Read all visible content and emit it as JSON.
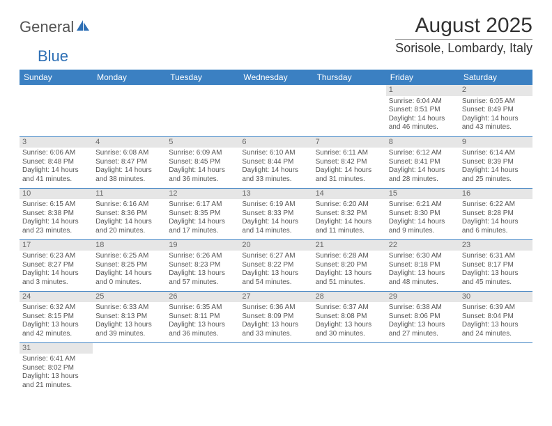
{
  "logo": {
    "text1": "General",
    "text2": "Blue"
  },
  "title": "August 2025",
  "location": "Sorisole, Lombardy, Italy",
  "weekdays": [
    "Sunday",
    "Monday",
    "Tuesday",
    "Wednesday",
    "Thursday",
    "Friday",
    "Saturday"
  ],
  "header_bg": "#3b80c2",
  "daynum_bg": "#e6e6e6",
  "weeks": [
    [
      null,
      null,
      null,
      null,
      null,
      {
        "n": "1",
        "sr": "Sunrise: 6:04 AM",
        "ss": "Sunset: 8:51 PM",
        "dl": "Daylight: 14 hours and 46 minutes."
      },
      {
        "n": "2",
        "sr": "Sunrise: 6:05 AM",
        "ss": "Sunset: 8:49 PM",
        "dl": "Daylight: 14 hours and 43 minutes."
      }
    ],
    [
      {
        "n": "3",
        "sr": "Sunrise: 6:06 AM",
        "ss": "Sunset: 8:48 PM",
        "dl": "Daylight: 14 hours and 41 minutes."
      },
      {
        "n": "4",
        "sr": "Sunrise: 6:08 AM",
        "ss": "Sunset: 8:47 PM",
        "dl": "Daylight: 14 hours and 38 minutes."
      },
      {
        "n": "5",
        "sr": "Sunrise: 6:09 AM",
        "ss": "Sunset: 8:45 PM",
        "dl": "Daylight: 14 hours and 36 minutes."
      },
      {
        "n": "6",
        "sr": "Sunrise: 6:10 AM",
        "ss": "Sunset: 8:44 PM",
        "dl": "Daylight: 14 hours and 33 minutes."
      },
      {
        "n": "7",
        "sr": "Sunrise: 6:11 AM",
        "ss": "Sunset: 8:42 PM",
        "dl": "Daylight: 14 hours and 31 minutes."
      },
      {
        "n": "8",
        "sr": "Sunrise: 6:12 AM",
        "ss": "Sunset: 8:41 PM",
        "dl": "Daylight: 14 hours and 28 minutes."
      },
      {
        "n": "9",
        "sr": "Sunrise: 6:14 AM",
        "ss": "Sunset: 8:39 PM",
        "dl": "Daylight: 14 hours and 25 minutes."
      }
    ],
    [
      {
        "n": "10",
        "sr": "Sunrise: 6:15 AM",
        "ss": "Sunset: 8:38 PM",
        "dl": "Daylight: 14 hours and 23 minutes."
      },
      {
        "n": "11",
        "sr": "Sunrise: 6:16 AM",
        "ss": "Sunset: 8:36 PM",
        "dl": "Daylight: 14 hours and 20 minutes."
      },
      {
        "n": "12",
        "sr": "Sunrise: 6:17 AM",
        "ss": "Sunset: 8:35 PM",
        "dl": "Daylight: 14 hours and 17 minutes."
      },
      {
        "n": "13",
        "sr": "Sunrise: 6:19 AM",
        "ss": "Sunset: 8:33 PM",
        "dl": "Daylight: 14 hours and 14 minutes."
      },
      {
        "n": "14",
        "sr": "Sunrise: 6:20 AM",
        "ss": "Sunset: 8:32 PM",
        "dl": "Daylight: 14 hours and 11 minutes."
      },
      {
        "n": "15",
        "sr": "Sunrise: 6:21 AM",
        "ss": "Sunset: 8:30 PM",
        "dl": "Daylight: 14 hours and 9 minutes."
      },
      {
        "n": "16",
        "sr": "Sunrise: 6:22 AM",
        "ss": "Sunset: 8:28 PM",
        "dl": "Daylight: 14 hours and 6 minutes."
      }
    ],
    [
      {
        "n": "17",
        "sr": "Sunrise: 6:23 AM",
        "ss": "Sunset: 8:27 PM",
        "dl": "Daylight: 14 hours and 3 minutes."
      },
      {
        "n": "18",
        "sr": "Sunrise: 6:25 AM",
        "ss": "Sunset: 8:25 PM",
        "dl": "Daylight: 14 hours and 0 minutes."
      },
      {
        "n": "19",
        "sr": "Sunrise: 6:26 AM",
        "ss": "Sunset: 8:23 PM",
        "dl": "Daylight: 13 hours and 57 minutes."
      },
      {
        "n": "20",
        "sr": "Sunrise: 6:27 AM",
        "ss": "Sunset: 8:22 PM",
        "dl": "Daylight: 13 hours and 54 minutes."
      },
      {
        "n": "21",
        "sr": "Sunrise: 6:28 AM",
        "ss": "Sunset: 8:20 PM",
        "dl": "Daylight: 13 hours and 51 minutes."
      },
      {
        "n": "22",
        "sr": "Sunrise: 6:30 AM",
        "ss": "Sunset: 8:18 PM",
        "dl": "Daylight: 13 hours and 48 minutes."
      },
      {
        "n": "23",
        "sr": "Sunrise: 6:31 AM",
        "ss": "Sunset: 8:17 PM",
        "dl": "Daylight: 13 hours and 45 minutes."
      }
    ],
    [
      {
        "n": "24",
        "sr": "Sunrise: 6:32 AM",
        "ss": "Sunset: 8:15 PM",
        "dl": "Daylight: 13 hours and 42 minutes."
      },
      {
        "n": "25",
        "sr": "Sunrise: 6:33 AM",
        "ss": "Sunset: 8:13 PM",
        "dl": "Daylight: 13 hours and 39 minutes."
      },
      {
        "n": "26",
        "sr": "Sunrise: 6:35 AM",
        "ss": "Sunset: 8:11 PM",
        "dl": "Daylight: 13 hours and 36 minutes."
      },
      {
        "n": "27",
        "sr": "Sunrise: 6:36 AM",
        "ss": "Sunset: 8:09 PM",
        "dl": "Daylight: 13 hours and 33 minutes."
      },
      {
        "n": "28",
        "sr": "Sunrise: 6:37 AM",
        "ss": "Sunset: 8:08 PM",
        "dl": "Daylight: 13 hours and 30 minutes."
      },
      {
        "n": "29",
        "sr": "Sunrise: 6:38 AM",
        "ss": "Sunset: 8:06 PM",
        "dl": "Daylight: 13 hours and 27 minutes."
      },
      {
        "n": "30",
        "sr": "Sunrise: 6:39 AM",
        "ss": "Sunset: 8:04 PM",
        "dl": "Daylight: 13 hours and 24 minutes."
      }
    ],
    [
      {
        "n": "31",
        "sr": "Sunrise: 6:41 AM",
        "ss": "Sunset: 8:02 PM",
        "dl": "Daylight: 13 hours and 21 minutes."
      },
      null,
      null,
      null,
      null,
      null,
      null
    ]
  ]
}
